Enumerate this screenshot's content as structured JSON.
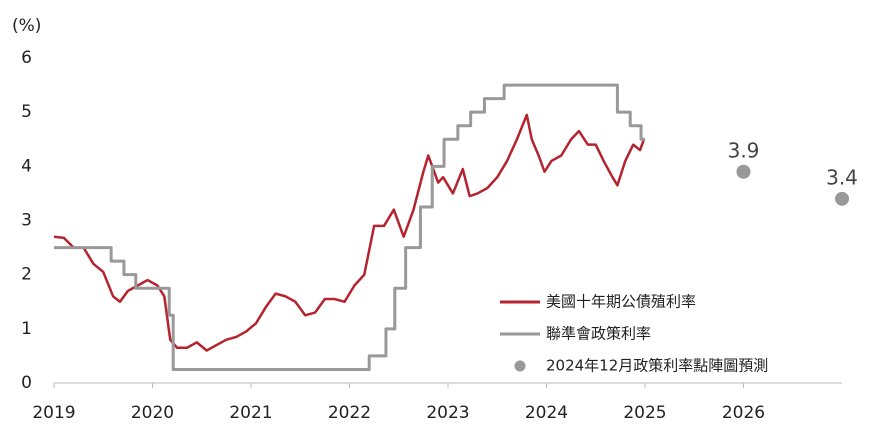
{
  "chart_data": {
    "type": "line",
    "y_label": "(%)",
    "xlim": [
      2019,
      2027
    ],
    "xticks": [
      2019,
      2020,
      2021,
      2022,
      2023,
      2024,
      2025,
      2026
    ],
    "ylim": [
      0,
      6
    ],
    "yticks": [
      0,
      1,
      2,
      3,
      4,
      5,
      6
    ],
    "series": [
      {
        "name": "美國十年期公債殖利率",
        "color": "#b5232f",
        "style": "line",
        "x": [
          2019.0,
          2019.1,
          2019.2,
          2019.3,
          2019.4,
          2019.5,
          2019.6,
          2019.67,
          2019.75,
          2019.85,
          2019.95,
          2020.05,
          2020.12,
          2020.18,
          2020.25,
          2020.35,
          2020.45,
          2020.55,
          2020.65,
          2020.75,
          2020.85,
          2020.95,
          2021.05,
          2021.15,
          2021.25,
          2021.35,
          2021.45,
          2021.55,
          2021.65,
          2021.75,
          2021.85,
          2021.95,
          2022.05,
          2022.15,
          2022.25,
          2022.35,
          2022.45,
          2022.55,
          2022.65,
          2022.75,
          2022.8,
          2022.9,
          2022.95,
          2023.05,
          2023.15,
          2023.22,
          2023.3,
          2023.4,
          2023.5,
          2023.6,
          2023.7,
          2023.8,
          2023.85,
          2023.92,
          2023.98,
          2024.05,
          2024.15,
          2024.25,
          2024.33,
          2024.42,
          2024.5,
          2024.58,
          2024.67,
          2024.72,
          2024.8,
          2024.88,
          2024.95,
          2024.99
        ],
        "values": [
          2.7,
          2.68,
          2.5,
          2.5,
          2.2,
          2.05,
          1.6,
          1.5,
          1.7,
          1.8,
          1.9,
          1.8,
          1.6,
          0.8,
          0.65,
          0.65,
          0.75,
          0.6,
          0.7,
          0.8,
          0.85,
          0.95,
          1.1,
          1.4,
          1.65,
          1.6,
          1.5,
          1.25,
          1.3,
          1.55,
          1.55,
          1.5,
          1.8,
          2.0,
          2.9,
          2.9,
          3.2,
          2.7,
          3.2,
          3.9,
          4.2,
          3.7,
          3.8,
          3.5,
          3.95,
          3.45,
          3.5,
          3.6,
          3.8,
          4.1,
          4.5,
          4.95,
          4.5,
          4.2,
          3.9,
          4.1,
          4.2,
          4.5,
          4.65,
          4.4,
          4.4,
          4.1,
          3.8,
          3.65,
          4.1,
          4.4,
          4.3,
          4.5
        ]
      },
      {
        "name": "聯準會政策利率",
        "color": "#999999",
        "style": "step",
        "x": [
          2019.0,
          2019.58,
          2019.71,
          2019.83,
          2020.17,
          2020.21,
          2022.2,
          2022.37,
          2022.46,
          2022.57,
          2022.72,
          2022.84,
          2022.96,
          2023.1,
          2023.23,
          2023.37,
          2023.57,
          2024.72,
          2024.85,
          2024.96,
          2025.0
        ],
        "values": [
          2.5,
          2.25,
          2.0,
          1.75,
          1.25,
          0.25,
          0.5,
          1.0,
          1.75,
          2.5,
          3.25,
          4.0,
          4.5,
          4.75,
          5.0,
          5.25,
          5.5,
          5.0,
          4.75,
          4.5,
          4.5
        ]
      },
      {
        "name": "2024年12月政策利率點陣圖預測",
        "color": "#999999",
        "style": "dots",
        "x": [
          2026,
          2027
        ],
        "values": [
          3.9,
          3.4
        ]
      }
    ],
    "legend": "lower right"
  }
}
